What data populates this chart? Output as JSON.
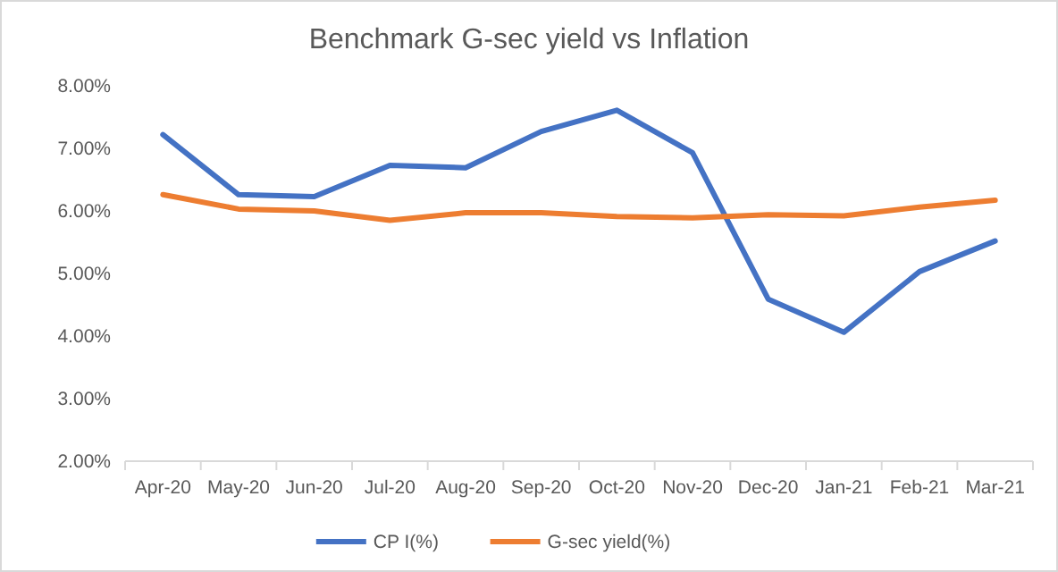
{
  "chart_data": {
    "type": "line",
    "title": "Benchmark G-sec yield vs Inflation",
    "categories": [
      "Apr-20",
      "May-20",
      "Jun-20",
      "Jul-20",
      "Aug-20",
      "Sep-20",
      "Oct-20",
      "Nov-20",
      "Dec-20",
      "Jan-21",
      "Feb-21",
      "Mar-21"
    ],
    "series": [
      {
        "name": "CP I(%)",
        "color": "#4472c4",
        "values": [
          7.22,
          6.26,
          6.23,
          6.73,
          6.69,
          7.27,
          7.61,
          6.93,
          4.59,
          4.06,
          5.03,
          5.52
        ]
      },
      {
        "name": "G-sec yield(%)",
        "color": "#ed7d31",
        "values": [
          6.26,
          6.03,
          6.0,
          5.85,
          5.97,
          5.97,
          5.91,
          5.89,
          5.94,
          5.92,
          6.06,
          6.17
        ]
      }
    ],
    "ylim": [
      2,
      8
    ],
    "yticks": [
      {
        "value": 2,
        "label": "2.00%"
      },
      {
        "value": 3,
        "label": "3.00%"
      },
      {
        "value": 4,
        "label": "4.00%"
      },
      {
        "value": 5,
        "label": "5.00%"
      },
      {
        "value": 6,
        "label": "6.00%"
      },
      {
        "value": 7,
        "label": "7.00%"
      },
      {
        "value": 8,
        "label": "8.00%"
      }
    ],
    "grid": false,
    "legend": "bottom",
    "marker": "none",
    "line_style": "solid"
  }
}
